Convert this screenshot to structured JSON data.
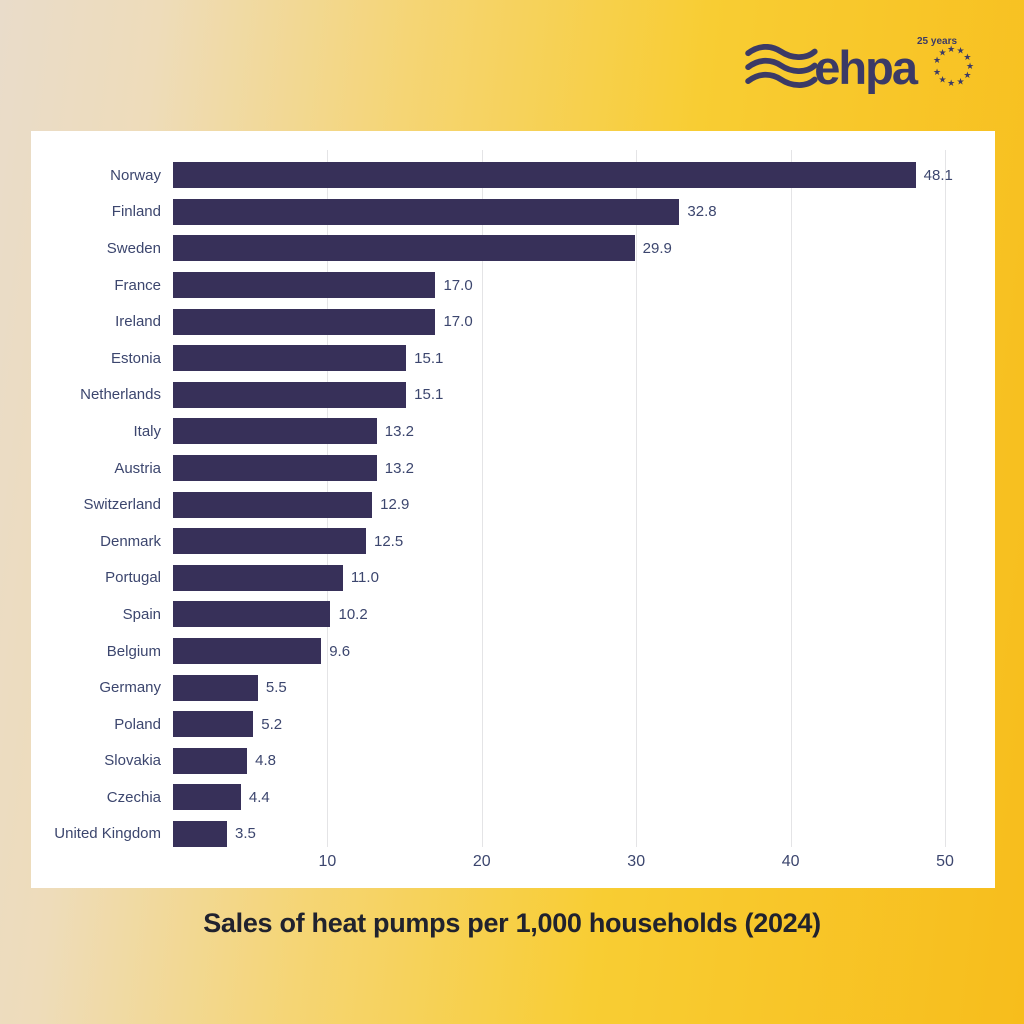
{
  "logo": {
    "brand": "ehpa",
    "anniversary": "25 years"
  },
  "chart_data": {
    "type": "bar",
    "orientation": "horizontal",
    "title": "Sales of heat pumps per 1,000 households (2024)",
    "categories": [
      "Norway",
      "Finland",
      "Sweden",
      "France",
      "Ireland",
      "Estonia",
      "Netherlands",
      "Italy",
      "Austria",
      "Switzerland",
      "Denmark",
      "Portugal",
      "Spain",
      "Belgium",
      "Germany",
      "Poland",
      "Slovakia",
      "Czechia",
      "United Kingdom"
    ],
    "values": [
      48.1,
      32.8,
      29.9,
      17.0,
      17.0,
      15.1,
      15.1,
      13.2,
      13.2,
      12.9,
      12.5,
      11.0,
      10.2,
      9.6,
      5.5,
      5.2,
      4.8,
      4.4,
      3.5
    ],
    "value_labels": [
      "48.1",
      "32.8",
      "29.9",
      "17.0",
      "17.0",
      "15.1",
      "15.1",
      "13.2",
      "13.2",
      "12.9",
      "12.5",
      "11.0",
      "10.2",
      "9.6",
      "5.5",
      "5.2",
      "4.8",
      "4.4",
      "3.5"
    ],
    "xticks": [
      10,
      20,
      30,
      40,
      50
    ],
    "xlim": [
      0,
      52.5
    ],
    "grid": true,
    "legend": false,
    "xlabel": "",
    "ylabel": "",
    "bar_color": "#373059",
    "text_color": "#3c466e",
    "gridline_color": "#e4e4e6"
  },
  "colors": {
    "background_left": "#e9dcca",
    "background_right": "#f7bd1c",
    "card": "#ffffff",
    "title_text": "#20222e",
    "logo": "#3b3a66"
  }
}
